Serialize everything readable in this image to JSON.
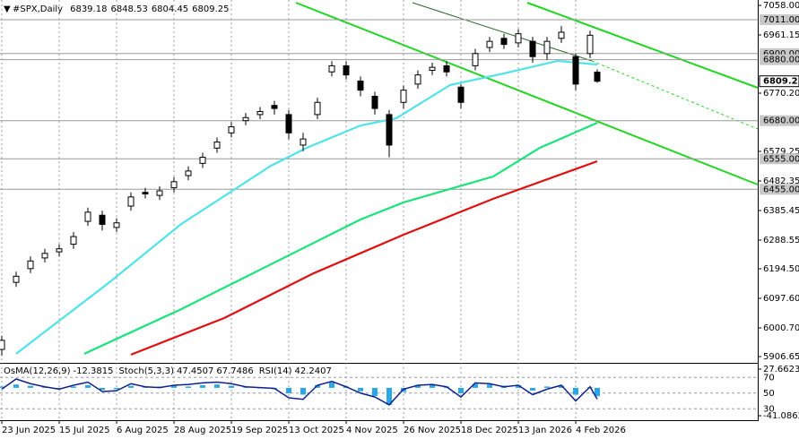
{
  "chart_data": {
    "type": "candlestick",
    "symbol": "#SPX,Daily",
    "x": [
      0,
      4,
      8,
      12,
      16,
      20,
      24,
      28,
      32,
      36,
      40,
      44,
      48,
      52,
      56,
      60,
      64,
      68,
      72,
      76,
      80,
      84,
      88,
      92,
      96,
      100,
      104,
      108,
      112,
      116,
      120,
      124,
      128,
      132,
      136,
      140,
      144,
      148,
      152,
      156,
      160,
      164,
      166
    ],
    "open": [
      5930,
      6150,
      6195,
      6230,
      6250,
      6275,
      6350,
      6370,
      6330,
      6400,
      6445,
      6435,
      6460,
      6500,
      6540,
      6590,
      6640,
      6680,
      6700,
      6730,
      6700,
      6600,
      6700,
      6840,
      6860,
      6810,
      6760,
      6700,
      6740,
      6800,
      6845,
      6860,
      6790,
      6860,
      6920,
      6950,
      6935,
      6940,
      6900,
      6950,
      6890,
      6900,
      6839.18
    ],
    "high": [
      5975,
      6185,
      6235,
      6260,
      6275,
      6315,
      6395,
      6385,
      6360,
      6445,
      6460,
      6465,
      6495,
      6530,
      6575,
      6625,
      6675,
      6705,
      6725,
      6745,
      6715,
      6640,
      6755,
      6875,
      6875,
      6825,
      6775,
      6715,
      6795,
      6845,
      6870,
      6875,
      6800,
      6915,
      6955,
      6965,
      6980,
      6955,
      6955,
      6990,
      6900,
      6975,
      6848.53
    ],
    "low": [
      5910,
      6135,
      6180,
      6215,
      6235,
      6260,
      6335,
      6320,
      6315,
      6385,
      6425,
      6420,
      6445,
      6485,
      6525,
      6575,
      6625,
      6665,
      6685,
      6700,
      6620,
      6580,
      6685,
      6825,
      6815,
      6760,
      6700,
      6560,
      6720,
      6785,
      6830,
      6825,
      6720,
      6845,
      6905,
      6915,
      6920,
      6870,
      6880,
      6935,
      6780,
      6885,
      6804.45
    ],
    "close": [
      5960,
      6170,
      6220,
      6245,
      6260,
      6300,
      6380,
      6340,
      6345,
      6430,
      6440,
      6450,
      6480,
      6515,
      6560,
      6610,
      6660,
      6690,
      6710,
      6720,
      6640,
      6620,
      6740,
      6860,
      6830,
      6780,
      6720,
      6600,
      6780,
      6830,
      6855,
      6840,
      6740,
      6900,
      6940,
      6930,
      6965,
      6890,
      6940,
      6970,
      6800,
      6960,
      6809.25
    ],
    "moving_averages": [
      {
        "color": "#4fe3e8",
        "x": [
          4,
          30,
          50,
          75,
          85,
          100,
          110,
          125,
          140,
          155,
          166
        ],
        "values": [
          5916,
          6150,
          6341,
          6532,
          6591,
          6664,
          6688,
          6797,
          6835,
          6876,
          6864
        ]
      },
      {
        "color": "#19e37a",
        "x": [
          23,
          50,
          75,
          100,
          112,
          137,
          150,
          166
        ],
        "values": [
          5916,
          6062,
          6209,
          6356,
          6412,
          6497,
          6591,
          6673
        ]
      },
      {
        "color": "#e01010",
        "x": [
          36,
          62,
          87,
          112,
          137,
          166
        ],
        "values": [
          5913,
          6033,
          6180,
          6306,
          6424,
          6547
        ]
      }
    ],
    "xlim": [
      -0.5,
      210.75
    ],
    "ylim": [
      5906.65,
      7058
    ],
    "yticks": [
      {
        "value": 7058,
        "label": "7058.00"
      },
      6961.15,
      {
        "value": 6770.2,
        "label": "6770.20"
      },
      6579.25,
      6482.35,
      6385.45,
      6288.55,
      {
        "value": 6194.5,
        "label": "6194.50"
      },
      {
        "value": 6097.6,
        "label": "6097.60"
      },
      {
        "value": 6000.7,
        "label": "6000.70"
      },
      5906.65
    ],
    "levels": [
      {
        "value": 7011,
        "label": "7011.00"
      },
      {
        "value": 6900,
        "label": "6900.00"
      },
      {
        "value": 6880,
        "label": "6880.00"
      },
      {
        "value": 6680,
        "label": "6680.00"
      },
      {
        "value": 6555,
        "label": "6555.00"
      },
      {
        "value": 6455,
        "label": "6455.00"
      }
    ],
    "xticks": [
      {
        "value": 0,
        "label": "23 Jun 2025"
      },
      {
        "value": 16,
        "label": "15 Jul 2025"
      },
      {
        "value": 32,
        "label": "6 Aug 2025"
      },
      {
        "value": 48,
        "label": "28 Aug 2025"
      },
      {
        "value": 64,
        "label": "19 Sep 2025"
      },
      {
        "value": 80,
        "label": "13 Oct 2025"
      },
      {
        "value": 96,
        "label": "4 Nov 2025"
      },
      {
        "value": 112,
        "label": "26 Nov 2025"
      },
      {
        "value": 128,
        "label": "18 Dec 2025"
      },
      {
        "value": 144,
        "label": "13 Jan 2026"
      },
      {
        "value": 160,
        "label": "4 Feb 2026"
      }
    ],
    "indicators": [
      {
        "name": "OsMA(12,26,9)",
        "readout": [
          -12.3815
        ]
      },
      {
        "name": "Stoch(5,3,3)",
        "readout": [
          47.4507,
          67.7486
        ]
      },
      {
        "name": "RSI(14)",
        "readout": [
          42.2407
        ]
      }
    ],
    "osma": {
      "color": "#2aa7e8",
      "values": [
        2,
        5,
        3,
        1,
        -1,
        2,
        4,
        -3,
        -2,
        3,
        1,
        2,
        3,
        2,
        4,
        5,
        3,
        1,
        0,
        -2,
        -8,
        -10,
        4,
        8,
        2,
        -5,
        -12,
        -25,
        -6,
        3,
        5,
        2,
        -8,
        6,
        5,
        3,
        4,
        -4,
        2,
        3,
        -10,
        1,
        -12.3815
      ],
      "ylim": [
        -41.0862,
        27.6623
      ],
      "yticks": [
        27.6623,
        -41.0862
      ]
    },
    "rsi": {
      "color": "#10208a",
      "values": [
        55,
        68,
        62,
        58,
        55,
        60,
        64,
        52,
        53,
        62,
        58,
        57,
        60,
        61,
        63,
        64,
        62,
        58,
        57,
        56,
        44,
        42,
        60,
        65,
        58,
        50,
        45,
        35,
        55,
        60,
        61,
        58,
        45,
        63,
        62,
        58,
        60,
        48,
        55,
        60,
        40,
        58,
        42.2407
      ],
      "ylim": [
        12,
        92
      ],
      "yticks": [
        70,
        50,
        30
      ]
    }
  }
}
